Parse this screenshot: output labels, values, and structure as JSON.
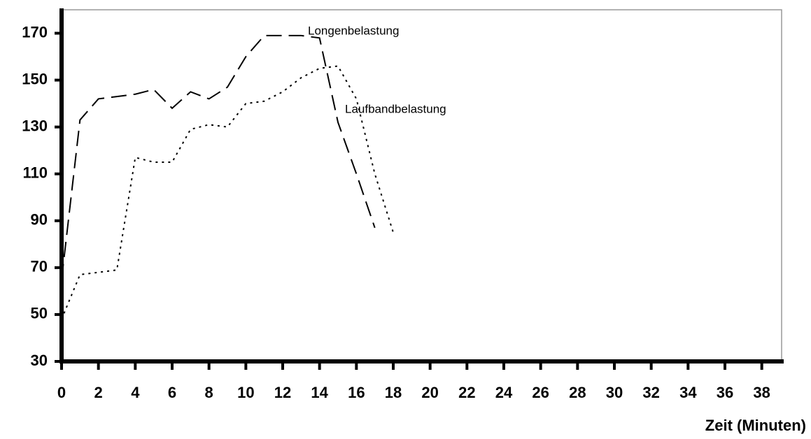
{
  "chart_data": {
    "type": "line",
    "x_label": "Zeit (Minuten)",
    "annotations": [
      "Longenbelastung",
      "Laufbandbelastung"
    ],
    "x": [
      0,
      1,
      2,
      3,
      4,
      5,
      6,
      7,
      8,
      9,
      10,
      11,
      12,
      13,
      14,
      15,
      16,
      17,
      18
    ],
    "series": [
      {
        "name": "Longenbelastung",
        "color": "#000000",
        "dash": "22 10",
        "values": [
          65,
          133,
          142,
          143,
          144,
          146,
          138,
          145,
          142,
          147,
          160,
          169,
          169,
          169,
          168,
          132,
          110,
          87,
          null
        ]
      },
      {
        "name": "Laufbandbelastung",
        "color": "#000000",
        "dash": "3 6",
        "values": [
          48,
          67,
          68,
          69,
          117,
          115,
          115,
          129,
          131,
          130,
          140,
          141,
          145,
          151,
          155,
          156,
          142,
          110,
          85
        ]
      }
    ],
    "xlim": [
      0,
      39
    ],
    "xticks": [
      0,
      2,
      4,
      6,
      8,
      10,
      12,
      14,
      16,
      18,
      20,
      22,
      24,
      26,
      28,
      30,
      32,
      34,
      36,
      38
    ],
    "ylim": [
      30,
      180
    ],
    "yticks": [
      30,
      50,
      70,
      90,
      110,
      130,
      150,
      170
    ]
  }
}
